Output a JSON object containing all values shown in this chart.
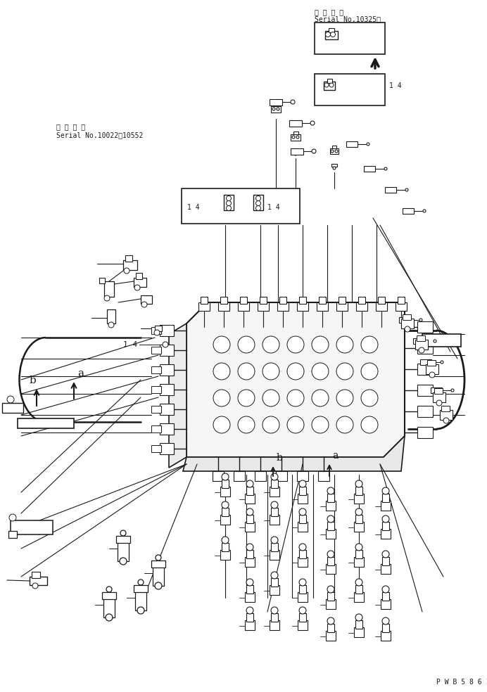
{
  "bg_color": "#ffffff",
  "line_color": "#1a1a1a",
  "fig_width": 6.92,
  "fig_height": 9.84,
  "dpi": 100,
  "title_top1": "適 用 号 機",
  "title_top2": "Serial No.10325～",
  "title_left1": "適 用 号 機",
  "title_left2": "Serial No.10022～10552",
  "watermark": "P W B 5 8 6 1"
}
